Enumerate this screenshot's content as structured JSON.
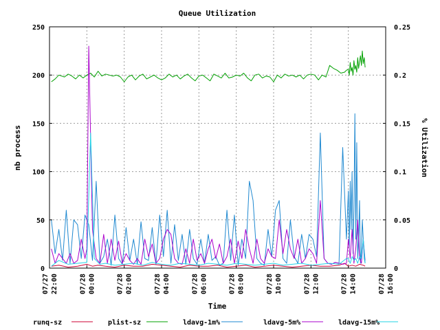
{
  "chart_data": {
    "type": "line",
    "title": "Queue Utilization",
    "xlabel": "Time",
    "ylabel": "nb process",
    "y2label": "% Utilization",
    "xlim": [
      22.0,
      40.0
    ],
    "ylim": [
      0,
      250
    ],
    "y2lim": [
      0,
      0.25
    ],
    "grid": true,
    "legend_position": "bottom",
    "x_ticks": [
      {
        "x": 22,
        "date": "07/27",
        "time": "22:00"
      },
      {
        "x": 24,
        "date": "07/28",
        "time": "00:00"
      },
      {
        "x": 26,
        "date": "07/28",
        "time": "02:00"
      },
      {
        "x": 28,
        "date": "07/28",
        "time": "04:00"
      },
      {
        "x": 30,
        "date": "07/28",
        "time": "06:00"
      },
      {
        "x": 32,
        "date": "07/28",
        "time": "08:00"
      },
      {
        "x": 34,
        "date": "07/28",
        "time": "10:00"
      },
      {
        "x": 36,
        "date": "07/28",
        "time": "12:00"
      },
      {
        "x": 38,
        "date": "07/28",
        "time": "14:00"
      },
      {
        "x": 40,
        "date": "07/28",
        "time": "16:00"
      }
    ],
    "y_ticks": [
      "0",
      "50",
      "100",
      "150",
      "200",
      "250"
    ],
    "y2_ticks": [
      "0",
      "0.05",
      "0.1",
      "0.15",
      "0.2",
      "0.25"
    ],
    "series": [
      {
        "name": "runq-sz",
        "color": "#cc0033",
        "x": [
          22.1,
          22.5,
          23.0,
          23.5,
          24.0,
          24.3,
          24.6,
          25.0,
          25.5,
          26.0,
          26.5,
          27.0,
          27.5,
          28.0,
          28.5,
          29.0,
          29.5,
          30.0,
          30.5,
          31.0,
          31.5,
          32.0,
          32.5,
          33.0,
          33.5,
          34.0,
          34.5,
          35.0,
          35.5,
          36.0,
          36.5,
          37.0,
          37.5,
          37.8,
          38.0,
          38.2,
          38.4,
          38.6,
          38.8,
          38.9
        ],
        "y": [
          2,
          3,
          1,
          2,
          4,
          2,
          3,
          2,
          1,
          3,
          2,
          2,
          4,
          3,
          2,
          1,
          3,
          2,
          2,
          3,
          1,
          2,
          3,
          1,
          2,
          3,
          2,
          1,
          2,
          3,
          2,
          2,
          3,
          5,
          2,
          3,
          2,
          4,
          3,
          2
        ]
      },
      {
        "name": "plist-sz",
        "color": "#00a000",
        "x": [
          22.1,
          22.3,
          22.5,
          22.8,
          23.0,
          23.2,
          23.4,
          23.6,
          23.8,
          24.0,
          24.2,
          24.4,
          24.6,
          24.8,
          25.0,
          25.2,
          25.4,
          25.6,
          25.8,
          26.0,
          26.2,
          26.4,
          26.6,
          26.8,
          27.0,
          27.2,
          27.4,
          27.6,
          27.8,
          28.0,
          28.2,
          28.4,
          28.6,
          28.8,
          29.0,
          29.2,
          29.4,
          29.6,
          29.8,
          30.0,
          30.2,
          30.4,
          30.6,
          30.8,
          31.0,
          31.2,
          31.4,
          31.6,
          31.8,
          32.0,
          32.2,
          32.4,
          32.6,
          32.8,
          33.0,
          33.2,
          33.4,
          33.6,
          33.8,
          34.0,
          34.2,
          34.4,
          34.6,
          34.8,
          35.0,
          35.2,
          35.4,
          35.6,
          35.8,
          36.0,
          36.2,
          36.4,
          36.6,
          36.8,
          37.0,
          37.2,
          37.4,
          37.6,
          37.8,
          37.9,
          38.0,
          38.05,
          38.1,
          38.15,
          38.2,
          38.25,
          38.3,
          38.35,
          38.4,
          38.45,
          38.5,
          38.55,
          38.6,
          38.65,
          38.7,
          38.75,
          38.8,
          38.85,
          38.9
        ],
        "y": [
          193,
          196,
          200,
          198,
          201,
          199,
          196,
          200,
          197,
          200,
          202,
          198,
          204,
          199,
          201,
          200,
          199,
          200,
          198,
          193,
          198,
          200,
          195,
          199,
          201,
          196,
          198,
          200,
          197,
          195,
          197,
          201,
          198,
          200,
          196,
          199,
          201,
          197,
          194,
          199,
          200,
          197,
          194,
          201,
          199,
          197,
          202,
          197,
          198,
          200,
          199,
          202,
          197,
          194,
          200,
          201,
          197,
          199,
          198,
          193,
          200,
          197,
          201,
          199,
          200,
          198,
          200,
          196,
          200,
          201,
          200,
          195,
          200,
          198,
          210,
          207,
          205,
          202,
          203,
          205,
          206,
          200,
          213,
          204,
          208,
          200,
          215,
          206,
          210,
          203,
          218,
          207,
          214,
          220,
          210,
          225,
          212,
          218,
          208
        ]
      },
      {
        "name": "ldavg-1m%",
        "color": "#1e88d0",
        "x": [
          22.1,
          22.3,
          22.5,
          22.7,
          22.9,
          23.1,
          23.3,
          23.5,
          23.7,
          23.9,
          24.1,
          24.3,
          24.5,
          24.7,
          24.9,
          25.1,
          25.3,
          25.5,
          25.7,
          25.9,
          26.1,
          26.3,
          26.5,
          26.7,
          26.9,
          27.1,
          27.3,
          27.5,
          27.7,
          27.9,
          28.1,
          28.3,
          28.5,
          28.7,
          28.9,
          29.1,
          29.3,
          29.5,
          29.7,
          29.9,
          30.1,
          30.3,
          30.5,
          30.7,
          30.9,
          31.1,
          31.3,
          31.5,
          31.7,
          31.9,
          32.1,
          32.3,
          32.5,
          32.7,
          32.9,
          33.1,
          33.3,
          33.5,
          33.7,
          33.9,
          34.1,
          34.3,
          34.5,
          34.7,
          34.9,
          35.1,
          35.3,
          35.5,
          35.7,
          35.9,
          36.1,
          36.3,
          36.5,
          36.7,
          36.9,
          37.1,
          37.3,
          37.5,
          37.7,
          37.9,
          38.0,
          38.05,
          38.1,
          38.15,
          38.2,
          38.25,
          38.3,
          38.35,
          38.4,
          38.45,
          38.5,
          38.55,
          38.6,
          38.65,
          38.7,
          38.75,
          38.8,
          38.85,
          38.9
        ],
        "y": [
          50,
          15,
          40,
          8,
          60,
          5,
          50,
          45,
          10,
          55,
          45,
          8,
          90,
          5,
          12,
          30,
          3,
          55,
          10,
          4,
          42,
          8,
          30,
          4,
          48,
          10,
          8,
          42,
          4,
          55,
          12,
          60,
          5,
          45,
          8,
          35,
          4,
          40,
          10,
          4,
          30,
          5,
          35,
          8,
          12,
          3,
          5,
          60,
          8,
          55,
          3,
          30,
          10,
          90,
          70,
          10,
          5,
          3,
          40,
          12,
          60,
          70,
          10,
          5,
          50,
          12,
          5,
          35,
          10,
          35,
          30,
          12,
          140,
          10,
          5,
          4,
          6,
          5,
          125,
          30,
          80,
          20,
          90,
          40,
          100,
          15,
          60,
          160,
          30,
          130,
          10,
          30,
          70,
          5,
          20,
          50,
          30,
          10,
          5
        ]
      },
      {
        "name": "ldavg-5m%",
        "color": "#aa00cc",
        "x": [
          22.1,
          22.3,
          22.5,
          22.7,
          22.9,
          23.1,
          23.3,
          23.5,
          23.7,
          23.9,
          24.0,
          24.1,
          24.3,
          24.5,
          24.7,
          24.9,
          25.1,
          25.3,
          25.5,
          25.7,
          25.9,
          26.1,
          26.3,
          26.5,
          26.7,
          26.9,
          27.1,
          27.3,
          27.5,
          27.7,
          27.9,
          28.1,
          28.3,
          28.5,
          28.7,
          28.9,
          29.1,
          29.3,
          29.5,
          29.7,
          29.9,
          30.1,
          30.3,
          30.5,
          30.7,
          30.9,
          31.1,
          31.3,
          31.5,
          31.7,
          31.9,
          32.1,
          32.3,
          32.5,
          32.7,
          32.9,
          33.1,
          33.3,
          33.5,
          33.7,
          33.9,
          34.1,
          34.3,
          34.5,
          34.7,
          34.9,
          35.1,
          35.3,
          35.5,
          35.7,
          35.9,
          36.1,
          36.3,
          36.5,
          36.7,
          36.9,
          37.1,
          37.3,
          37.5,
          37.7,
          37.9,
          38.0,
          38.1,
          38.2,
          38.3,
          38.4,
          38.5,
          38.6,
          38.7,
          38.8,
          38.9
        ],
        "y": [
          20,
          5,
          15,
          10,
          5,
          15,
          5,
          8,
          30,
          10,
          20,
          230,
          40,
          10,
          5,
          35,
          5,
          30,
          8,
          28,
          5,
          15,
          8,
          4,
          10,
          4,
          30,
          12,
          25,
          5,
          10,
          30,
          40,
          35,
          10,
          5,
          4,
          20,
          5,
          30,
          8,
          15,
          5,
          20,
          30,
          10,
          25,
          5,
          12,
          30,
          5,
          28,
          10,
          40,
          20,
          5,
          30,
          10,
          5,
          20,
          12,
          10,
          50,
          15,
          40,
          20,
          10,
          30,
          5,
          10,
          20,
          15,
          5,
          70,
          10,
          5,
          4,
          6,
          5,
          4,
          5,
          30,
          10,
          40,
          5,
          20,
          50,
          10,
          5,
          30,
          8
        ]
      },
      {
        "name": "ldavg-15m%",
        "color": "#22d3e6",
        "x": [
          22.1,
          22.5,
          23.0,
          23.5,
          24.0,
          24.2,
          24.4,
          24.7,
          25.0,
          25.5,
          26.0,
          26.5,
          27.0,
          27.5,
          28.0,
          28.5,
          29.0,
          29.5,
          30.0,
          30.5,
          31.0,
          31.5,
          32.0,
          32.5,
          33.0,
          33.5,
          34.0,
          34.5,
          35.0,
          35.5,
          36.0,
          36.5,
          37.0,
          37.5,
          37.9,
          38.0,
          38.1,
          38.2,
          38.3,
          38.4,
          38.5,
          38.6,
          38.7,
          38.8,
          38.9
        ],
        "y": [
          2,
          8,
          4,
          5,
          6,
          140,
          10,
          4,
          5,
          3,
          4,
          5,
          3,
          6,
          4,
          3,
          5,
          4,
          3,
          5,
          4,
          3,
          5,
          4,
          3,
          4,
          5,
          3,
          4,
          5,
          3,
          4,
          5,
          4,
          10,
          10,
          5,
          12,
          8,
          10,
          5,
          12,
          10,
          30,
          5
        ]
      }
    ]
  }
}
